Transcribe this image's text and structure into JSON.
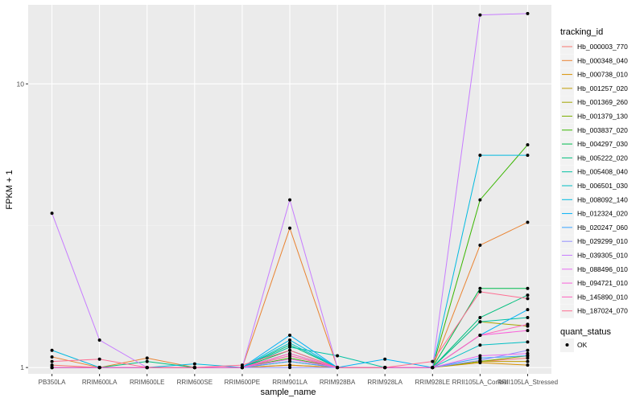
{
  "chart_data": {
    "type": "line",
    "xlabel": "sample_name",
    "ylabel": "FPKM + 1",
    "yscale": "log10",
    "ylim": [
      0.95,
      19
    ],
    "yticks": [
      {
        "value": 1,
        "label": "1"
      },
      {
        "value": 10,
        "label": "10"
      }
    ],
    "grid": true,
    "legend_position": "right",
    "categories": [
      "PB350LA",
      "RRIM600LA",
      "RRIM600LE",
      "RRIM600SE",
      "RRIM600PE",
      "RRIM901LA",
      "RRIM928BA",
      "RRIM928LA",
      "RRIM928LE",
      "RRII105LA_Control",
      "RRII105LA_Stressed"
    ],
    "color_legend": {
      "title": "tracking_id",
      "series": [
        {
          "name": "Hb_000003_770",
          "color": "#F8766D",
          "values": [
            1.02,
            1.0,
            1.0,
            1.0,
            1.0,
            1.02,
            1.0,
            1.0,
            1.0,
            1.05,
            1.08
          ]
        },
        {
          "name": "Hb_000348_040",
          "color": "#EA8331",
          "values": [
            1.09,
            1.0,
            1.08,
            1.0,
            1.0,
            3.1,
            1.0,
            1.0,
            1.0,
            2.7,
            3.25
          ]
        },
        {
          "name": "Hb_000738_010",
          "color": "#D89000",
          "values": [
            1.0,
            1.0,
            1.0,
            1.0,
            1.0,
            1.02,
            1.0,
            1.0,
            1.0,
            1.04,
            1.02
          ]
        },
        {
          "name": "Hb_001257_020",
          "color": "#C09B00",
          "values": [
            1.0,
            1.0,
            1.0,
            1.0,
            1.0,
            1.05,
            1.0,
            1.0,
            1.0,
            1.05,
            1.05
          ]
        },
        {
          "name": "Hb_001369_260",
          "color": "#A3A500",
          "values": [
            1.0,
            1.0,
            1.0,
            1.0,
            1.0,
            1.1,
            1.0,
            1.0,
            1.0,
            1.45,
            1.4
          ]
        },
        {
          "name": "Hb_001379_130",
          "color": "#7CAE00",
          "values": [
            1.0,
            1.0,
            1.0,
            1.0,
            1.0,
            1.12,
            1.0,
            1.0,
            1.0,
            1.05,
            1.1
          ]
        },
        {
          "name": "Hb_003837_020",
          "color": "#39B600",
          "values": [
            1.0,
            1.0,
            1.0,
            1.0,
            1.0,
            1.08,
            1.0,
            1.0,
            1.0,
            3.9,
            6.1
          ]
        },
        {
          "name": "Hb_004297_030",
          "color": "#00BB4E",
          "values": [
            1.0,
            1.0,
            1.0,
            1.0,
            1.0,
            1.15,
            1.0,
            1.0,
            1.0,
            1.9,
            1.9
          ]
        },
        {
          "name": "Hb_005222_020",
          "color": "#00BF7D",
          "values": [
            1.0,
            1.0,
            1.05,
            1.0,
            1.0,
            1.2,
            1.0,
            1.0,
            1.0,
            1.5,
            1.8
          ]
        },
        {
          "name": "Hb_005408_040",
          "color": "#00C1A3",
          "values": [
            1.0,
            1.0,
            1.0,
            1.0,
            1.0,
            1.18,
            1.1,
            1.0,
            1.0,
            1.45,
            1.5
          ]
        },
        {
          "name": "Hb_006501_030",
          "color": "#00BFC4",
          "values": [
            1.0,
            1.0,
            1.0,
            1.0,
            1.0,
            1.22,
            1.0,
            1.0,
            1.0,
            1.2,
            1.23
          ]
        },
        {
          "name": "Hb_008092_140",
          "color": "#00BAE0",
          "values": [
            1.15,
            1.0,
            1.0,
            1.03,
            1.0,
            1.25,
            1.0,
            1.0,
            1.0,
            5.6,
            5.6
          ]
        },
        {
          "name": "Hb_012324_020",
          "color": "#00B0F6",
          "values": [
            1.0,
            1.0,
            1.0,
            1.0,
            1.0,
            1.3,
            1.0,
            1.07,
            1.0,
            1.3,
            1.6
          ]
        },
        {
          "name": "Hb_020247_060",
          "color": "#35A2FF",
          "values": [
            1.0,
            1.0,
            1.0,
            1.0,
            1.0,
            1.05,
            1.0,
            1.0,
            1.0,
            1.08,
            1.1
          ]
        },
        {
          "name": "Hb_029299_010",
          "color": "#9590FF",
          "values": [
            1.0,
            1.0,
            1.0,
            1.0,
            1.0,
            1.0,
            1.0,
            1.0,
            1.0,
            1.06,
            1.15
          ]
        },
        {
          "name": "Hb_039305_010",
          "color": "#C77CFF",
          "values": [
            3.5,
            1.25,
            1.0,
            1.0,
            1.0,
            3.9,
            1.0,
            1.0,
            1.0,
            17.5,
            17.7
          ]
        },
        {
          "name": "Hb_088496_010",
          "color": "#E76BF3",
          "values": [
            1.0,
            1.0,
            1.0,
            1.0,
            1.0,
            1.07,
            1.0,
            1.0,
            1.0,
            1.1,
            1.12
          ]
        },
        {
          "name": "Hb_094721_010",
          "color": "#FA62DB",
          "values": [
            1.0,
            1.0,
            1.0,
            1.0,
            1.0,
            1.12,
            1.0,
            1.0,
            1.0,
            1.3,
            1.35
          ]
        },
        {
          "name": "Hb_145890_010",
          "color": "#FF62BC",
          "values": [
            1.0,
            1.0,
            1.0,
            1.0,
            1.0,
            1.1,
            1.0,
            1.0,
            1.0,
            1.3,
            1.42
          ]
        },
        {
          "name": "Hb_187024_070",
          "color": "#FF6C91",
          "values": [
            1.05,
            1.07,
            1.0,
            1.0,
            1.02,
            1.15,
            1.0,
            1.0,
            1.05,
            1.85,
            1.75
          ]
        }
      ]
    },
    "shape_legend": {
      "title": "quant_status",
      "entries": [
        "OK"
      ]
    }
  }
}
